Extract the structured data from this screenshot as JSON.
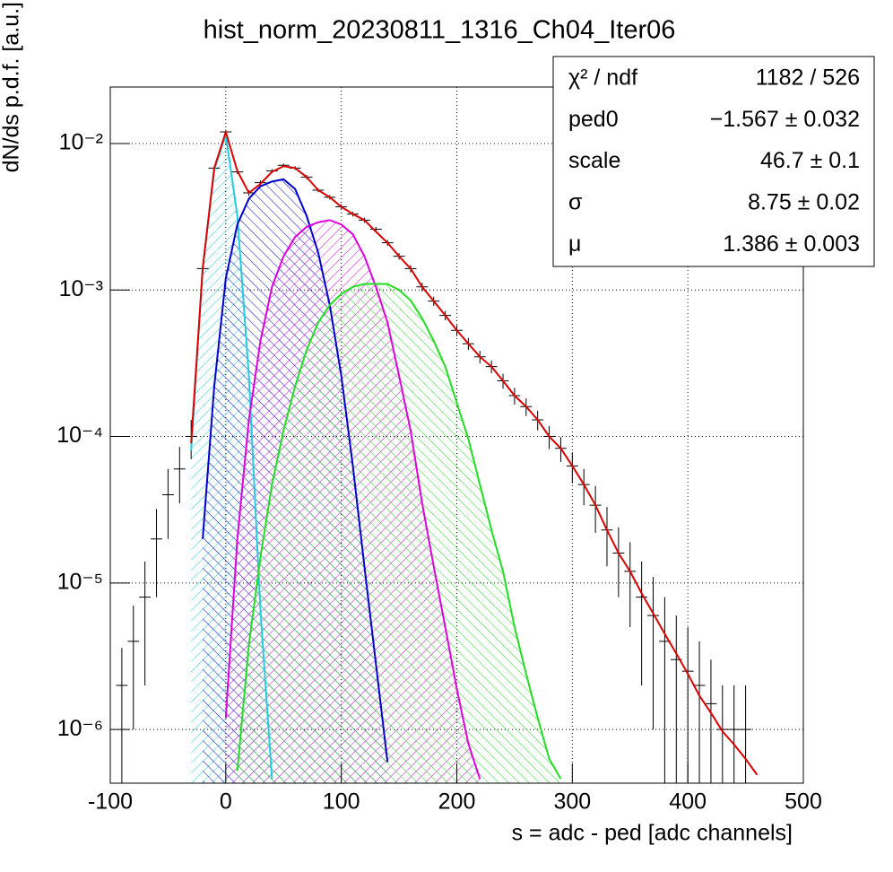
{
  "chart_data": {
    "type": "line",
    "title": "hist_norm_20230811_1316_Ch04_Iter06",
    "xlabel": "s = adc - ped [adc channels]",
    "ylabel": "dN/ds p.d.f. [a.u.]",
    "xlim": [
      -100,
      500
    ],
    "xticks": [
      -100,
      0,
      100,
      200,
      300,
      400,
      500
    ],
    "ylim": [
      4.3e-07,
      0.0243
    ],
    "yticks": [
      {
        "value": 1e-06,
        "label": "10⁻⁶"
      },
      {
        "value": 1e-05,
        "label": "10⁻⁵"
      },
      {
        "value": 0.0001,
        "label": "10⁻⁴"
      },
      {
        "value": 0.001,
        "label": "10⁻³"
      },
      {
        "value": 0.01,
        "label": "10⁻²"
      }
    ],
    "log_y": true,
    "grid": true,
    "x": [
      -90,
      -80,
      -70,
      -60,
      -50,
      -40,
      -30,
      -20,
      -10,
      0,
      10,
      20,
      30,
      40,
      50,
      60,
      70,
      80,
      90,
      100,
      110,
      120,
      130,
      140,
      150,
      160,
      170,
      180,
      190,
      200,
      210,
      220,
      230,
      240,
      250,
      260,
      270,
      280,
      290,
      300,
      310,
      320,
      330,
      340,
      350,
      360,
      370,
      380,
      390,
      400,
      410,
      420,
      430,
      440,
      450,
      460,
      470
    ],
    "series": [
      {
        "color": "#000000",
        "kind": "errorbar",
        "values": [
          2e-06,
          4e-06,
          8e-06,
          2e-05,
          4e-05,
          6e-05,
          0.0001,
          0.0014,
          0.0068,
          0.012,
          0.0064,
          0.0046,
          0.0054,
          0.0065,
          0.0071,
          0.0068,
          0.0059,
          0.0048,
          0.0043,
          0.0037,
          0.0033,
          0.003,
          0.0026,
          0.0021,
          0.0017,
          0.0014,
          0.00105,
          0.00084,
          0.00067,
          0.00053,
          0.00043,
          0.00035,
          0.0003,
          0.00024,
          0.00019,
          0.00016,
          0.00013,
          0.0001,
          8.3e-05,
          6.3e-05,
          4.7e-05,
          3.4e-05,
          2.3e-05,
          1.6e-05,
          1.2e-05,
          8e-06,
          6e-06,
          4e-06,
          3e-06,
          2.5e-06,
          2e-06,
          1.5e-06,
          1e-06,
          1e-06,
          1e-06,
          null,
          null
        ],
        "errors": [
          1.6e-06,
          3e-06,
          6e-06,
          1.2e-05,
          2e-05,
          2.5e-05,
          3e-05,
          0.0001,
          0.0002,
          0.0003,
          0.0002,
          0.0002,
          0.0002,
          0.0002,
          0.0002,
          0.0002,
          0.0002,
          0.00015,
          0.00015,
          0.00015,
          0.00012,
          0.00012,
          0.0001,
          0.0001,
          9e-05,
          8e-05,
          7e-05,
          6e-05,
          5e-05,
          4.5e-05,
          4e-05,
          3.5e-05,
          3e-05,
          2.8e-05,
          2.5e-05,
          2.2e-05,
          2e-05,
          1.8e-05,
          1.6e-05,
          1.5e-05,
          1.3e-05,
          1.2e-05,
          1e-05,
          8e-06,
          7e-06,
          6e-06,
          5e-06,
          4e-06,
          3e-06,
          2.5e-06,
          2e-06,
          1.5e-06,
          1e-06,
          1e-06,
          1e-06,
          null,
          null
        ]
      },
      {
        "color": "#22ccdd",
        "kind": "hatch",
        "values": [
          null,
          null,
          null,
          null,
          null,
          null,
          8e-05,
          0.0014,
          0.0066,
          0.0115,
          0.0032,
          0.00026,
          6.5e-06,
          4.6e-07,
          null,
          null,
          null,
          null,
          null,
          null,
          null,
          null,
          null,
          null,
          null,
          null,
          null,
          null,
          null,
          null,
          null,
          null,
          null,
          null,
          null,
          null,
          null,
          null,
          null,
          null,
          null,
          null,
          null,
          null,
          null,
          null,
          null,
          null,
          null,
          null,
          null,
          null,
          null,
          null,
          null,
          null,
          null
        ]
      },
      {
        "color": "#0000cc",
        "kind": "hatch",
        "values": [
          null,
          null,
          null,
          null,
          null,
          null,
          null,
          2e-05,
          0.00022,
          0.0012,
          0.0028,
          0.0042,
          0.0051,
          0.0055,
          0.0057,
          0.0049,
          0.0032,
          0.0018,
          0.00079,
          0.00026,
          6.3e-05,
          1.3e-05,
          2.8e-06,
          6e-07,
          null,
          null,
          null,
          null,
          null,
          null,
          null,
          null,
          null,
          null,
          null,
          null,
          null,
          null,
          null,
          null,
          null,
          null,
          null,
          null,
          null,
          null,
          null,
          null,
          null,
          null,
          null,
          null,
          null,
          null,
          null,
          null,
          null
        ]
      },
      {
        "color": "#dd00dd",
        "kind": "hatch",
        "values": [
          null,
          null,
          null,
          null,
          null,
          null,
          null,
          null,
          null,
          1.2e-06,
          2e-05,
          0.00013,
          0.00045,
          0.00105,
          0.0017,
          0.0023,
          0.0027,
          0.0029,
          0.003,
          0.0028,
          0.0024,
          0.0017,
          0.00105,
          0.0006,
          0.00026,
          0.00011,
          3.5e-05,
          1.3e-05,
          5e-06,
          1.9e-06,
          8e-07,
          4.6e-07,
          null,
          null,
          null,
          null,
          null,
          null,
          null,
          null,
          null,
          null,
          null,
          null,
          null,
          null,
          null,
          null,
          null,
          null,
          null,
          null,
          null,
          null,
          null,
          null,
          null
        ]
      },
      {
        "color": "#22dd22",
        "kind": "hatch",
        "values": [
          null,
          null,
          null,
          null,
          null,
          null,
          null,
          null,
          null,
          null,
          5.2e-07,
          3.8e-06,
          1.5e-05,
          4.7e-05,
          0.00011,
          0.00022,
          0.00039,
          0.0006,
          0.00079,
          0.00094,
          0.00105,
          0.0011,
          0.0011,
          0.0011,
          0.001,
          0.00085,
          0.00064,
          0.00045,
          0.0003,
          0.00017,
          9.6e-05,
          4.7e-05,
          2.3e-05,
          1.2e-05,
          5e-06,
          2.4e-06,
          1.2e-06,
          6.3e-07,
          4.6e-07,
          null,
          null,
          null,
          null,
          null,
          null,
          null,
          null,
          null,
          null,
          null,
          null,
          null,
          null,
          null,
          null,
          null,
          null
        ]
      },
      {
        "color": "#dd0000",
        "kind": "line",
        "values": [
          null,
          null,
          null,
          null,
          null,
          null,
          9e-05,
          0.0014,
          0.0068,
          0.012,
          0.0065,
          0.0046,
          0.0053,
          0.0064,
          0.007,
          0.0068,
          0.0059,
          0.0048,
          0.0043,
          0.0037,
          0.0033,
          0.003,
          0.0025,
          0.0021,
          0.0017,
          0.0014,
          0.00105,
          0.00084,
          0.00067,
          0.00053,
          0.00043,
          0.00035,
          0.0003,
          0.00024,
          0.00019,
          0.00016,
          0.00013,
          0.0001,
          8.3e-05,
          6.3e-05,
          4.7e-05,
          3.4e-05,
          2.3e-05,
          1.6e-05,
          1.2e-05,
          8.5e-06,
          6.2e-06,
          4.5e-06,
          3.3e-06,
          2.4e-06,
          1.7e-06,
          1.3e-06,
          9.7e-07,
          7.9e-07,
          6.3e-07,
          4.9e-07,
          null
        ]
      }
    ],
    "stats": [
      {
        "label": "χ² / ndf",
        "value": "1182 / 526"
      },
      {
        "label": "ped0",
        "value": "−1.567 ± 0.032"
      },
      {
        "label": "scale",
        "value": "46.7 ± 0.1"
      },
      {
        "label": "σ",
        "value": "8.75 ± 0.02"
      },
      {
        "label": "μ",
        "value": "1.386 ± 0.003"
      }
    ]
  }
}
